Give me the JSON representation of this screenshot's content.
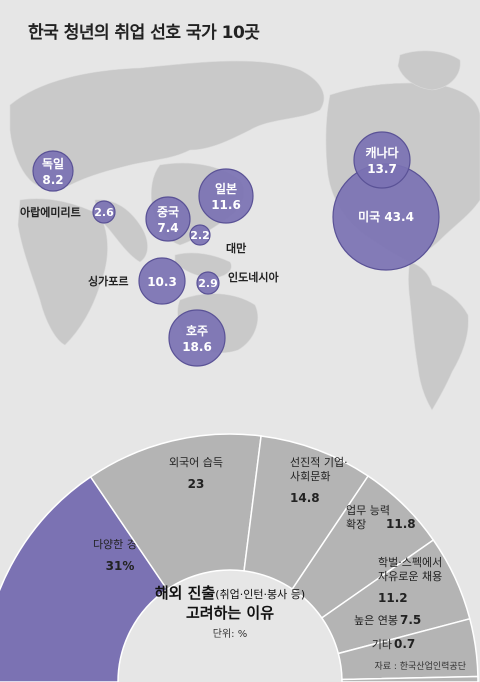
{
  "title": "한국 청년의 취업 선호 국가 10곳",
  "colors": {
    "accent": "#7b72b3",
    "gray_segment": "#b4b4b4",
    "background": "#e6e6e6",
    "map": "#c9c9c9"
  },
  "chart_data": [
    {
      "type": "bubble-map",
      "title": "한국 청년의 취업 선호 국가 10곳",
      "points": [
        {
          "name": "독일",
          "value": 8.2
        },
        {
          "name": "아랍에미리트",
          "value": 2.6
        },
        {
          "name": "중국",
          "value": 7.4
        },
        {
          "name": "일본",
          "value": 11.6
        },
        {
          "name": "대만",
          "value": 2.2
        },
        {
          "name": "싱가포르",
          "value": 10.3
        },
        {
          "name": "인도네시아",
          "value": 2.9
        },
        {
          "name": "호주",
          "value": 18.6
        },
        {
          "name": "캐나다",
          "value": 13.7
        },
        {
          "name": "미국",
          "value": 43.4
        }
      ]
    },
    {
      "type": "pie",
      "subtype": "half-donut",
      "title": "해외 진출",
      "title_note": "(취업·인턴·봉사 등)",
      "subtitle": "고려하는 이유",
      "unit": "단위: %",
      "slices": [
        {
          "label": "다양한 경험",
          "value": 31,
          "display": "31%",
          "highlight": true
        },
        {
          "label": "외국어 습득",
          "value": 23,
          "display": "23"
        },
        {
          "label": "선진적 기업·사회문화",
          "value": 14.8,
          "display": "14.8"
        },
        {
          "label": "업무 능력 확장",
          "value": 11.8,
          "display": "11.8"
        },
        {
          "label": "학벌·스펙에서 자유로운 채용",
          "value": 11.2,
          "display": "11.2"
        },
        {
          "label": "높은 연봉",
          "value": 7.5,
          "display": "7.5"
        },
        {
          "label": "기타",
          "value": 0.7,
          "display": "0.7"
        }
      ]
    }
  ],
  "source": "자료 : 한국산업인력공단"
}
